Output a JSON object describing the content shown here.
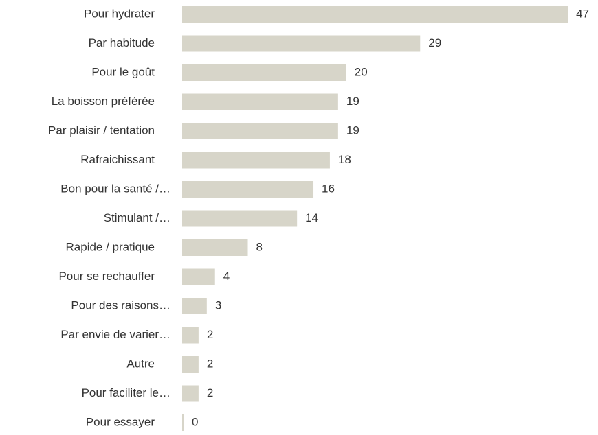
{
  "chart_data": {
    "type": "bar",
    "orientation": "horizontal",
    "categories": [
      "Pour hydrater",
      "Par habitude",
      "Pour le goût",
      "La boisson préférée",
      "Par plaisir / tentation",
      "Rafraichissant",
      "Bon pour la santé /…",
      "Stimulant /…",
      "Rapide / pratique",
      "Pour se rechauffer",
      "Pour des raisons…",
      "Par envie de varier…",
      "Autre",
      "Pour faciliter le…",
      "Pour essayer"
    ],
    "values": [
      47,
      29,
      20,
      19,
      19,
      18,
      16,
      14,
      8,
      4,
      3,
      2,
      2,
      2,
      0
    ],
    "color": "#d7d5c9"
  }
}
